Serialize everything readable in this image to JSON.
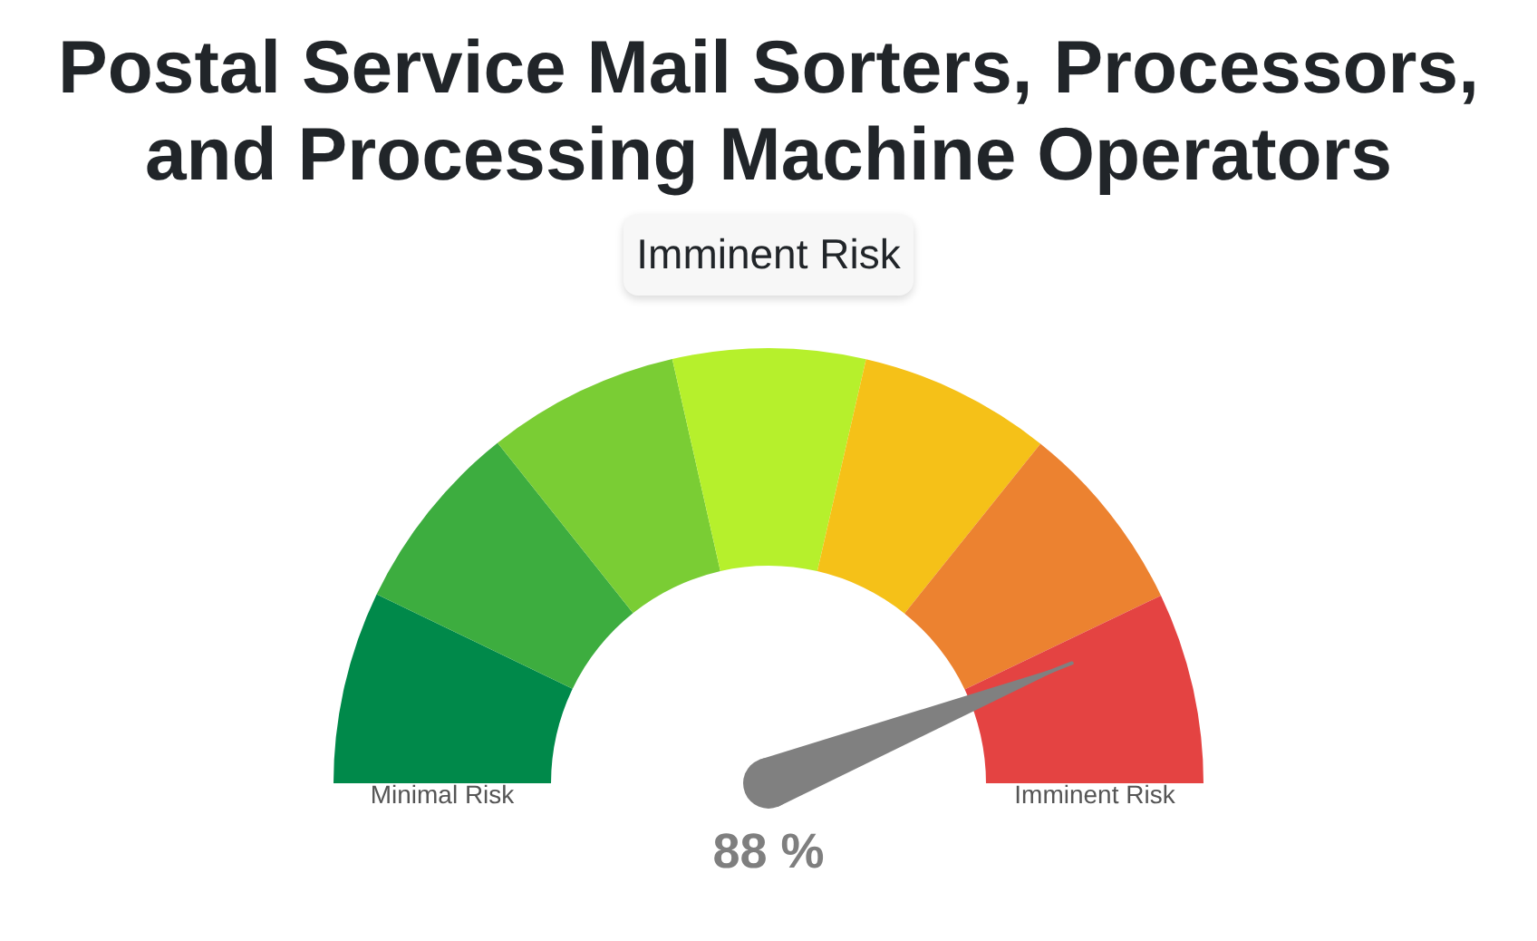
{
  "chart_data": {
    "type": "donut",
    "title": "Postal Service Mail Sorters, Processors, and Processing Machine Operators",
    "subtitle": "Imminent Risk",
    "categories": [
      "Minimal Risk",
      null,
      null,
      null,
      null,
      null,
      "Imminent Risk"
    ],
    "values": [
      14.3,
      14.3,
      14.3,
      14.3,
      14.3,
      14.3,
      14.2
    ],
    "colors": [
      "#00894a",
      "#3dad3f",
      "#7acd34",
      "#b6f02c",
      "#f5c118",
      "#ec8230",
      "#e44342"
    ],
    "needle": "Imminent Risk",
    "annotations": [
      "88 %"
    ]
  }
}
